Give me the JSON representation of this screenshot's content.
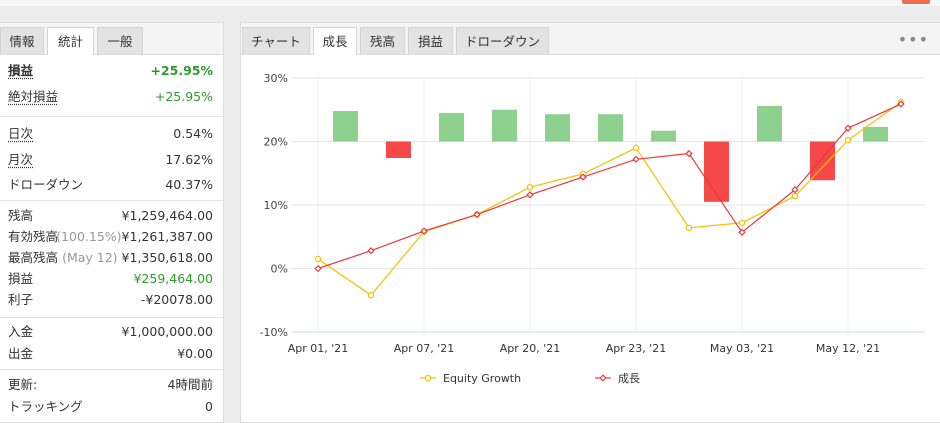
{
  "left_panel": {
    "tabs": [
      {
        "label": "情報",
        "active": false
      },
      {
        "label": "統計",
        "active": true
      },
      {
        "label": "一般",
        "active": false
      }
    ],
    "stats": [
      {
        "label": "損益",
        "value": "+25.95%"
      },
      {
        "label": "絶対損益",
        "value": "+25.95%"
      },
      {
        "label": "日次",
        "value": "0.54%"
      },
      {
        "label": "月次",
        "value": "17.62%"
      },
      {
        "label": "ドローダウン",
        "value": "40.37%"
      },
      {
        "label": "残高",
        "value": "¥1,259,464.00"
      },
      {
        "label": "有効残高",
        "note": "(100.15%)",
        "value": "¥1,261,387.00"
      },
      {
        "label": "最高残高",
        "note": "(May 12)",
        "value": "¥1,350,618.00"
      },
      {
        "label": "損益",
        "value": "¥259,464.00"
      },
      {
        "label": "利子",
        "value": "-¥20078.00"
      },
      {
        "label": "入金",
        "value": "¥1,000,000.00"
      },
      {
        "label": "出金",
        "value": "¥0.00"
      },
      {
        "label": "更新:",
        "value": "4時間前"
      },
      {
        "label": "トラッキング",
        "value": "0"
      }
    ]
  },
  "right_panel": {
    "tabs": [
      {
        "label": "チャート",
        "active": false
      },
      {
        "label": "成長",
        "active": true
      },
      {
        "label": "残高",
        "active": false
      },
      {
        "label": "損益",
        "active": false
      },
      {
        "label": "ドローダウン",
        "active": false
      }
    ],
    "menu_icon": "more-horizontal-icon"
  },
  "chart_data": {
    "type": "line",
    "x_tick_labels": [
      "Apr 01, '21",
      "Apr 07, '21",
      "Apr 20, '21",
      "Apr 23, '21",
      "May 03, '21",
      "May 12, '21"
    ],
    "y_tick_labels": [
      "30%",
      "20%",
      "10%",
      "0%",
      "-10%"
    ],
    "ylim": [
      -10,
      30
    ],
    "bar_baseline": 20,
    "bars": [
      {
        "value": 4.8,
        "color": "#8ed08e"
      },
      {
        "value": -2.6,
        "color": "#f54848"
      },
      {
        "value": 4.5,
        "color": "#8ed08e"
      },
      {
        "value": 5.0,
        "color": "#8ed08e"
      },
      {
        "value": 4.3,
        "color": "#8ed08e"
      },
      {
        "value": 4.3,
        "color": "#8ed08e"
      },
      {
        "value": 1.7,
        "color": "#8ed08e"
      },
      {
        "value": -9.5,
        "color": "#f54848"
      },
      {
        "value": 5.6,
        "color": "#8ed08e"
      },
      {
        "value": -6.1,
        "color": "#f54848"
      },
      {
        "value": 2.3,
        "color": "#8ed08e"
      }
    ],
    "series": [
      {
        "name": "Equity Growth",
        "color": "#f5c000",
        "values": [
          1.5,
          -4.2,
          5.8,
          8.5,
          12.8,
          14.9,
          19.0,
          6.4,
          7.2,
          11.4,
          20.2,
          26.2
        ]
      },
      {
        "name": "成長",
        "color": "#e83a3a",
        "values": [
          0.0,
          2.8,
          5.9,
          8.5,
          11.6,
          14.4,
          17.2,
          18.1,
          5.7,
          12.4,
          22.1,
          25.9
        ]
      }
    ],
    "grid": true,
    "legend_position": "bottom"
  }
}
